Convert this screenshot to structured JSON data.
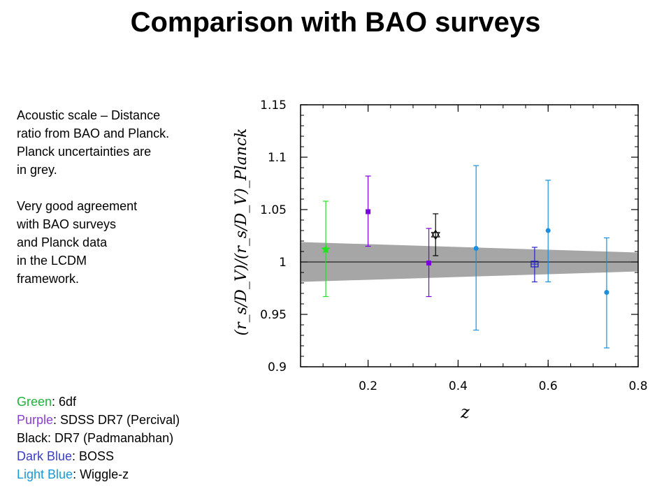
{
  "slide": {
    "title": "Comparison with BAO surveys",
    "description": [
      "Acoustic scale – Distance\nratio from BAO and Planck.\nPlanck uncertainties are\nin grey.",
      "Very good agreement\nwith BAO surveys\nand Planck data\nin the LCDM\nframework."
    ],
    "legend": [
      {
        "label": "Green",
        "text": ": 6df",
        "color": "#1db33a"
      },
      {
        "label": "Purple",
        "text": ": SDSS DR7 (Percival)",
        "color": "#8a3fd6"
      },
      {
        "label": "Black",
        "text": ": DR7 (Padmanabhan)",
        "color": "#000000"
      },
      {
        "label": "Dark Blue",
        "text": ": BOSS",
        "color": "#3b3fbf"
      },
      {
        "label": "Light Blue",
        "text": ": Wiggle-z",
        "color": "#1a9ad6"
      }
    ]
  },
  "chart_data": {
    "type": "scatter",
    "title": "",
    "xlabel": "z",
    "ylabel": "(r_s/D_V)/(r_s/D_V)_Planck",
    "xlim": [
      0.05,
      0.8
    ],
    "ylim": [
      0.9,
      1.15
    ],
    "x_ticks": [
      "0.2",
      "0.4",
      "0.6",
      "0.8"
    ],
    "y_ticks": [
      "0.9",
      "0.95",
      "1",
      "1.05",
      "1.1",
      "1.15"
    ],
    "reference_line": 1.0,
    "planck_band": {
      "color": "#a6a6a6",
      "points": [
        {
          "z": 0.05,
          "lower": 0.981,
          "upper": 1.019
        },
        {
          "z": 0.8,
          "lower": 0.991,
          "upper": 1.009
        }
      ]
    },
    "series": [
      {
        "name": "6df",
        "color": "#1ee61e",
        "marker": "star",
        "points": [
          {
            "z": 0.106,
            "y": 1.012,
            "ylo": 0.967,
            "yhi": 1.058
          }
        ]
      },
      {
        "name": "SDSS DR7 (Percival)",
        "color": "#7a00e0",
        "marker": "square",
        "points": [
          {
            "z": 0.2,
            "y": 1.048,
            "ylo": 1.015,
            "yhi": 1.082
          },
          {
            "z": 0.335,
            "y": 0.999,
            "ylo": 0.967,
            "yhi": 1.032
          }
        ]
      },
      {
        "name": "DR7 (Padmanabhan)",
        "color": "#000000",
        "marker": "hexagram",
        "points": [
          {
            "z": 0.35,
            "y": 1.026,
            "ylo": 1.006,
            "yhi": 1.046
          }
        ]
      },
      {
        "name": "BOSS",
        "color": "#2222cc",
        "marker": "open-square-cross",
        "points": [
          {
            "z": 0.57,
            "y": 0.998,
            "ylo": 0.981,
            "yhi": 1.014
          }
        ]
      },
      {
        "name": "Wiggle-z",
        "color": "#1a8fe0",
        "marker": "circle",
        "points": [
          {
            "z": 0.44,
            "y": 1.013,
            "ylo": 0.935,
            "yhi": 1.092
          },
          {
            "z": 0.6,
            "y": 1.03,
            "ylo": 0.981,
            "yhi": 1.078
          },
          {
            "z": 0.73,
            "y": 0.971,
            "ylo": 0.918,
            "yhi": 1.023
          }
        ]
      }
    ]
  }
}
